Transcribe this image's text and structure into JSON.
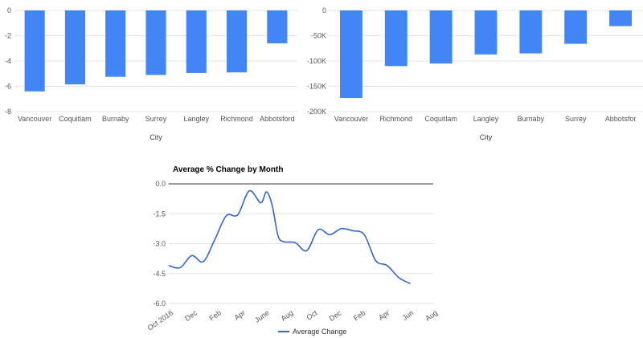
{
  "chart_data": [
    {
      "type": "bar",
      "title": "",
      "xlabel": "City",
      "ylabel": "",
      "categories": [
        "Vancouver",
        "Coquitlam",
        "Burnaby",
        "Surrey",
        "Langley",
        "Richmond",
        "Abbotsford"
      ],
      "values": [
        -6.4,
        -5.85,
        -5.25,
        -5.1,
        -4.95,
        -4.9,
        -2.6
      ],
      "yticks": [
        "0",
        "-2",
        "-4",
        "-6",
        "-8"
      ],
      "ylim": [
        -8,
        0
      ],
      "color": "#4285f4",
      "grid": true
    },
    {
      "type": "bar",
      "title": "",
      "xlabel": "City",
      "ylabel": "",
      "categories": [
        "Vancouver",
        "Richmond",
        "Coquitlam",
        "Langley",
        "Burnaby",
        "Surrey",
        "Abbotsfor"
      ],
      "values": [
        -173000,
        -110000,
        -105000,
        -87000,
        -85000,
        -66000,
        -31000
      ],
      "yticks": [
        "0",
        "-50K",
        "-100K",
        "-150K",
        "-200K"
      ],
      "ylim": [
        -200000,
        0
      ],
      "color": "#4285f4",
      "grid": true
    },
    {
      "type": "line",
      "title": "Average % Change by Month",
      "xlabel": "",
      "ylabel": "",
      "x_ticks": [
        "Oct 2016",
        "Dec",
        "Feb",
        "Apr",
        "June",
        "Aug",
        "Oct",
        "Dec",
        "Feb",
        "Apr",
        "Jun",
        "Aug"
      ],
      "yticks": [
        "0.0",
        "-1.5",
        "-3.0",
        "-4.5",
        "-6.0"
      ],
      "ylim": [
        -6,
        0
      ],
      "x_range": [
        0,
        23
      ],
      "series": [
        {
          "name": "Average Change",
          "color": "#3366cc",
          "x": [
            0,
            1,
            2,
            3,
            4,
            5,
            6,
            7,
            8,
            8.5,
            9,
            9.5,
            10,
            11,
            12,
            13,
            14,
            15,
            16,
            17,
            18,
            19,
            20,
            21,
            22,
            23
          ],
          "y": [
            -4.1,
            -4.2,
            -3.6,
            -3.9,
            -2.8,
            -1.6,
            -1.55,
            -0.35,
            -0.95,
            -0.4,
            -1.1,
            -2.6,
            -2.9,
            -2.95,
            -3.35,
            -2.3,
            -2.55,
            -2.25,
            -2.35,
            -2.55,
            -3.85,
            -4.1,
            -4.7,
            -5.0,
            null,
            null
          ]
        }
      ],
      "legend_position": "bottom"
    }
  ]
}
